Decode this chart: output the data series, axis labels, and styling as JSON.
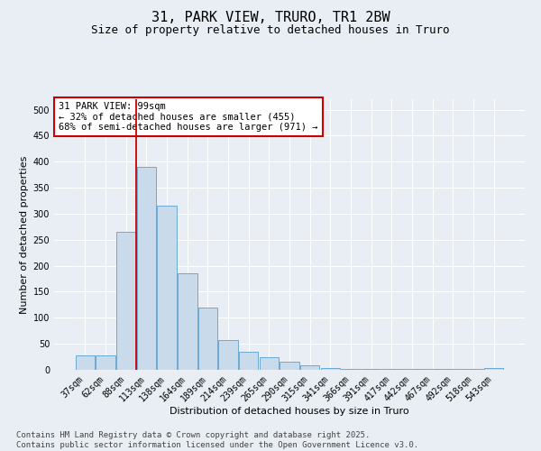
{
  "title": "31, PARK VIEW, TRURO, TR1 2BW",
  "subtitle": "Size of property relative to detached houses in Truro",
  "xlabel": "Distribution of detached houses by size in Truro",
  "ylabel": "Number of detached properties",
  "categories": [
    "37sqm",
    "62sqm",
    "88sqm",
    "113sqm",
    "138sqm",
    "164sqm",
    "189sqm",
    "214sqm",
    "239sqm",
    "265sqm",
    "290sqm",
    "315sqm",
    "341sqm",
    "366sqm",
    "391sqm",
    "417sqm",
    "442sqm",
    "467sqm",
    "492sqm",
    "518sqm",
    "543sqm"
  ],
  "values": [
    28,
    28,
    265,
    390,
    315,
    185,
    120,
    58,
    34,
    25,
    15,
    8,
    3,
    2,
    1,
    1,
    1,
    1,
    1,
    1,
    4
  ],
  "bar_color": "#c9daea",
  "bar_edge_color": "#6aaad4",
  "vline_x": 2.5,
  "vline_color": "#cc0000",
  "ylim": [
    0,
    520
  ],
  "yticks": [
    0,
    50,
    100,
    150,
    200,
    250,
    300,
    350,
    400,
    450,
    500
  ],
  "annotation_box_text": "31 PARK VIEW: 99sqm\n← 32% of detached houses are smaller (455)\n68% of semi-detached houses are larger (971) →",
  "annotation_box_color": "#cc0000",
  "annotation_box_bg": "#ffffff",
  "footnote": "Contains HM Land Registry data © Crown copyright and database right 2025.\nContains public sector information licensed under the Open Government Licence v3.0.",
  "bg_color": "#e8eef4",
  "grid_color": "#ffffff",
  "title_fontsize": 11,
  "subtitle_fontsize": 9,
  "label_fontsize": 8,
  "tick_fontsize": 7,
  "annot_fontsize": 7.5,
  "footnote_fontsize": 6.5
}
